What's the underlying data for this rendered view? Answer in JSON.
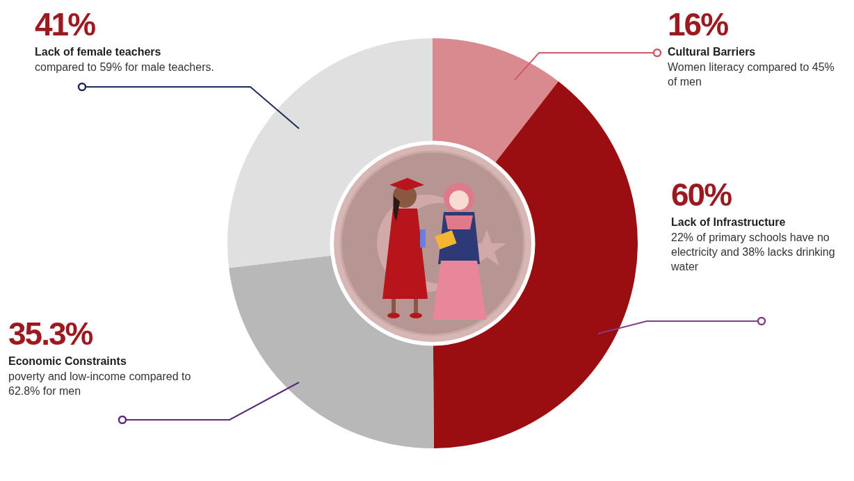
{
  "chart_data": {
    "type": "doughnut",
    "categories": [
      "Cultural Barriers",
      "Lack of Infrastructure",
      "Economic Constraints",
      "Lack of female teachers"
    ],
    "values": [
      16,
      60,
      35.3,
      41
    ],
    "value_labels": [
      "16%",
      "60%",
      "35.3%",
      "41%"
    ],
    "annotations": [
      "Women literacy compared to 45% of men",
      "22% of primary schools have no electricity and 38% lacks drinking water",
      "poverty and low-income compared to 62.8% for men",
      "compared to 59% for male teachers."
    ],
    "colors": [
      "#d98a8e",
      "#9a0e12",
      "#b8b8b8",
      "#e0e0e0"
    ],
    "data_labels": true
  }
}
